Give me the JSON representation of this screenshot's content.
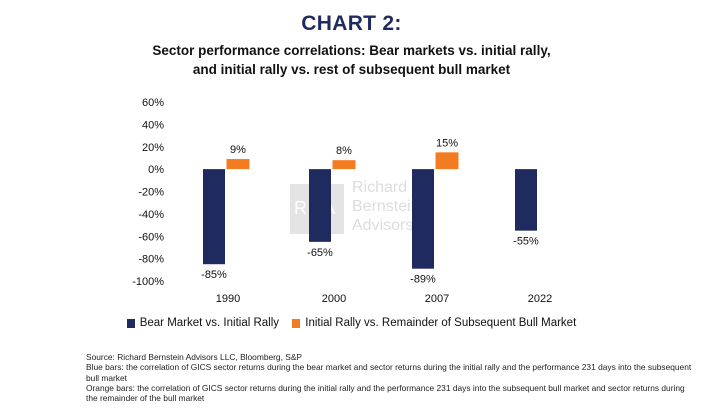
{
  "heading": "CHART 2:",
  "subtitle_line1": "Sector performance correlations: Bear markets vs. initial rally,",
  "subtitle_line2": "and initial rally vs. rest of subsequent bull market",
  "colors": {
    "blue": "#1f2a5e",
    "orange": "#f47c20"
  },
  "watermark": {
    "letters": "RBA",
    "line1": "Richard",
    "line2": "Bernstein",
    "line3": "Advisors"
  },
  "chart_data": {
    "type": "bar",
    "categories": [
      "1990",
      "2000",
      "2007",
      "2022"
    ],
    "series": [
      {
        "name": "Bear Market vs. Initial Rally",
        "values": [
          -85,
          -65,
          -89,
          -55
        ],
        "labels": [
          "-85%",
          "-65%",
          "-89%",
          "-55%"
        ]
      },
      {
        "name": "Initial Rally vs. Remainder of Subsequent Bull Market",
        "values": [
          9,
          8,
          15,
          null
        ],
        "labels": [
          "9%",
          "8%",
          "15%",
          ""
        ]
      }
    ],
    "ylim": [
      -100,
      60
    ],
    "yticks": [
      60,
      40,
      20,
      0,
      -20,
      -40,
      -60,
      -80,
      -100
    ],
    "ytick_labels": [
      "60%",
      "40%",
      "20%",
      "0%",
      "-20%",
      "-40%",
      "-60%",
      "-80%",
      "-100%"
    ],
    "grid": false,
    "legend": "bottom"
  },
  "notes": {
    "source": "Source: Richard Bernstein Advisors LLC, Bloomberg, S&P",
    "blue": "Blue bars: the correlation of GICS sector returns during the bear market and sector returns during the initial rally and the performance 231 days into the subsequent bull market",
    "orange": "Orange bars: the correlation of GICS sector returns during the initial rally and the performance 231 days into the subsequent bull market and sector returns during the remainder of the bull market"
  }
}
